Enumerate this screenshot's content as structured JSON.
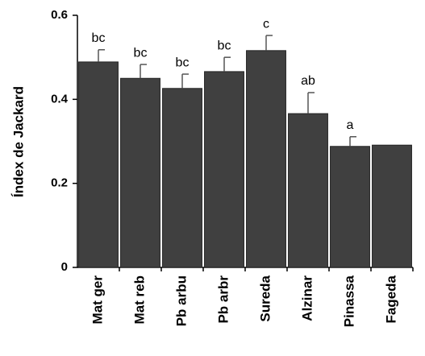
{
  "chart_data": {
    "type": "bar",
    "y_label": "Índex de Jackard",
    "categories": [
      "Mat ger",
      "Mat reb",
      "Pb arbu",
      "Pb arbr",
      "Sureda",
      "Alzinar",
      "Pinassa",
      "Fageda"
    ],
    "values": [
      0.489,
      0.45,
      0.426,
      0.466,
      0.516,
      0.366,
      0.288,
      0.291
    ],
    "errors": [
      0.029,
      0.033,
      0.034,
      0.034,
      0.036,
      0.05,
      0.023,
      null
    ],
    "annotations": [
      "bc",
      "bc",
      "bc",
      "bc",
      "c",
      "ab",
      "a",
      null
    ],
    "color": "#404040",
    "ylim": [
      0,
      0.6
    ],
    "yticks": [
      0,
      0.2,
      0.4,
      0.6
    ],
    "grid": false
  }
}
